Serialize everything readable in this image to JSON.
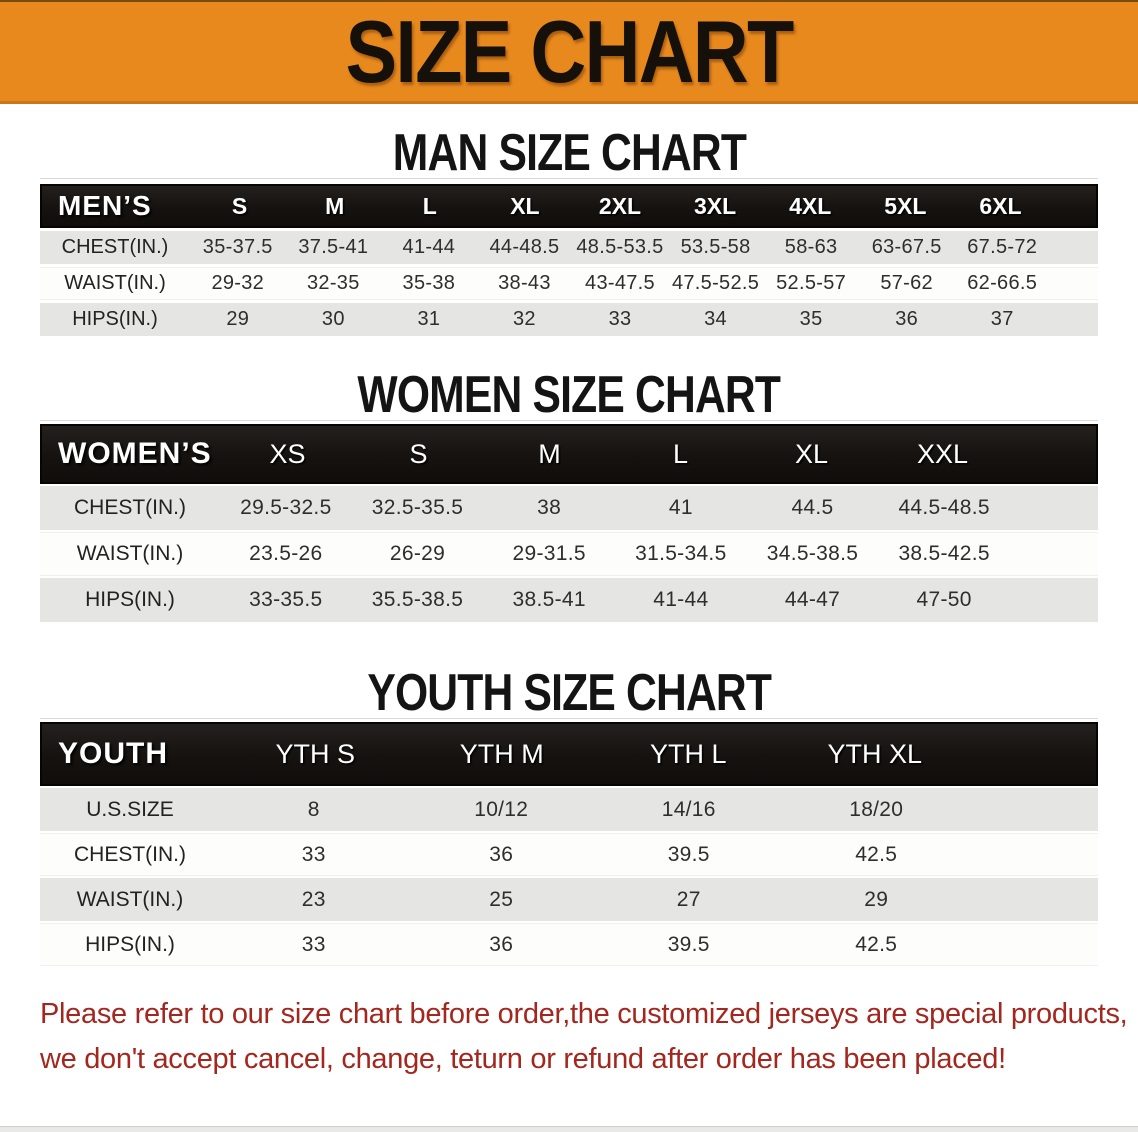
{
  "banner": {
    "title": "SIZE CHART"
  },
  "colors": {
    "banner_orange": "#e8891e",
    "header_black": "#151210",
    "row_gray": "#e5e5e3",
    "disclaimer_red": "#a3271e"
  },
  "men": {
    "heading": "MAN SIZE CHART",
    "group_label": "MEN’S",
    "sizes": [
      "S",
      "M",
      "L",
      "XL",
      "2XL",
      "3XL",
      "4XL",
      "5XL",
      "6XL"
    ],
    "rows": [
      {
        "label": "CHEST(IN.)",
        "values": [
          "35-37.5",
          "37.5-41",
          "41-44",
          "44-48.5",
          "48.5-53.5",
          "53.5-58",
          "58-63",
          "63-67.5",
          "67.5-72"
        ]
      },
      {
        "label": "WAIST(IN.)",
        "values": [
          "29-32",
          "32-35",
          "35-38",
          "38-43",
          "43-47.5",
          "47.5-52.5",
          "52.5-57",
          "57-62",
          "62-66.5"
        ]
      },
      {
        "label": "HIPS(IN.)",
        "values": [
          "29",
          "30",
          "31",
          "32",
          "33",
          "34",
          "35",
          "36",
          "37"
        ]
      }
    ]
  },
  "women": {
    "heading": "WOMEN SIZE CHART",
    "group_label": "WOMEN’S",
    "sizes": [
      "XS",
      "S",
      "M",
      "L",
      "XL",
      "XXL"
    ],
    "rows": [
      {
        "label": "CHEST(IN.)",
        "values": [
          "29.5-32.5",
          "32.5-35.5",
          "38",
          "41",
          "44.5",
          "44.5-48.5"
        ]
      },
      {
        "label": "WAIST(IN.)",
        "values": [
          "23.5-26",
          "26-29",
          "29-31.5",
          "31.5-34.5",
          "34.5-38.5",
          "38.5-42.5"
        ]
      },
      {
        "label": "HIPS(IN.)",
        "values": [
          "33-35.5",
          "35.5-38.5",
          "38.5-41",
          "41-44",
          "44-47",
          "47-50"
        ]
      }
    ]
  },
  "youth": {
    "heading": "YOUTH SIZE CHART",
    "group_label": "YOUTH",
    "sizes": [
      "YTH S",
      "YTH M",
      "YTH L",
      "YTH XL"
    ],
    "rows": [
      {
        "label": "U.S.SIZE",
        "values": [
          "8",
          "10/12",
          "14/16",
          "18/20"
        ]
      },
      {
        "label": "CHEST(IN.)",
        "values": [
          "33",
          "36",
          "39.5",
          "42.5"
        ]
      },
      {
        "label": "WAIST(IN.)",
        "values": [
          "23",
          "25",
          "27",
          "29"
        ]
      },
      {
        "label": "HIPS(IN.)",
        "values": [
          "33",
          "36",
          "39.5",
          "42.5"
        ]
      }
    ]
  },
  "disclaimer": {
    "line1": "Please refer to our size chart before order,the customized jerseys are special products,",
    "line2": "we don't accept cancel, change, teturn or refund after order has been placed!"
  }
}
